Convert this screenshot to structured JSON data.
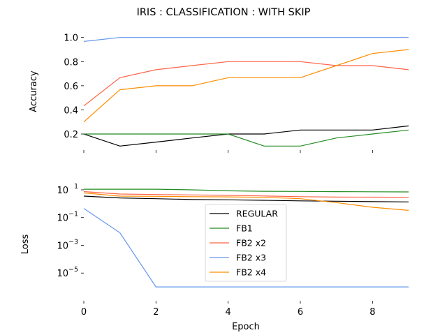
{
  "chart_data": {
    "title": "IRIS : CLASSIFICATION : WITH SKIP",
    "xlabel": "Epoch",
    "x": [
      0,
      1,
      2,
      3,
      4,
      5,
      6,
      7,
      8,
      9
    ],
    "x_ticks": [
      "0",
      "2",
      "4",
      "6",
      "8"
    ],
    "colors": {
      "REGULAR": "#000000",
      "FB1": "#228b22",
      "FB2 x2": "#ff6347",
      "FB2 x3": "#6495ed",
      "FB2 x4": "#ff8c00"
    },
    "subplots": [
      {
        "type": "line",
        "ylabel": "Accuracy",
        "yscale": "linear",
        "ylim": [
          0.067,
          1.033
        ],
        "y_ticks": [
          "0.2",
          "0.4",
          "0.6",
          "0.8",
          "1.0"
        ],
        "series": [
          {
            "name": "REGULAR",
            "values": [
              0.2,
              0.1,
              0.133,
              0.167,
              0.2,
              0.2,
              0.233,
              0.233,
              0.233,
              0.267
            ]
          },
          {
            "name": "FB1",
            "values": [
              0.2,
              0.2,
              0.2,
              0.2,
              0.2,
              0.1,
              0.1,
              0.167,
              0.2,
              0.233
            ]
          },
          {
            "name": "FB2 x2",
            "values": [
              0.433,
              0.667,
              0.733,
              0.767,
              0.8,
              0.8,
              0.8,
              0.767,
              0.767,
              0.733
            ]
          },
          {
            "name": "FB2 x3",
            "values": [
              0.967,
              1.0,
              1.0,
              1.0,
              1.0,
              1.0,
              1.0,
              1.0,
              1.0,
              1.0
            ]
          },
          {
            "name": "FB2 x4",
            "values": [
              0.3,
              0.567,
              0.6,
              0.6,
              0.667,
              0.667,
              0.667,
              0.767,
              0.867,
              0.9
            ]
          }
        ]
      },
      {
        "type": "line",
        "ylabel": "Loss",
        "yscale": "log",
        "ylim": [
          1e-07,
          40
        ],
        "y_ticks": [
          {
            "base": "10",
            "exp": "1"
          },
          {
            "base": "10",
            "exp": "−1"
          },
          {
            "base": "10",
            "exp": "−3"
          },
          {
            "base": "10",
            "exp": "−5"
          }
        ],
        "series": [
          {
            "name": "REGULAR",
            "values": [
              3.5,
              2.6,
              2.3,
              2.0,
              1.9,
              1.75,
              1.6,
              1.5,
              1.4,
              1.35
            ]
          },
          {
            "name": "FB1",
            "values": [
              11,
              11,
              11,
              10,
              8.5,
              7.8,
              7.6,
              7.4,
              7.2,
              7.0
            ]
          },
          {
            "name": "FB2 x2",
            "values": [
              7.5,
              5.0,
              4.6,
              4.3,
              4.0,
              3.6,
              3.2,
              3.0,
              2.95,
              2.9
            ]
          },
          {
            "name": "FB2 x3",
            "values": [
              0.45,
              0.008,
              1e-06,
              1e-06,
              1e-06,
              1e-06,
              1e-06,
              1e-06,
              1e-06,
              1e-06
            ]
          },
          {
            "name": "FB2 x4",
            "values": [
              6.0,
              3.5,
              3.4,
              3.2,
              3.1,
              2.9,
              2.3,
              1.2,
              0.55,
              0.33
            ]
          }
        ]
      }
    ],
    "legend": {
      "placement": "center of lower subplot",
      "entries": [
        "REGULAR",
        "FB1",
        "FB2 x2",
        "FB2 x3",
        "FB2 x4"
      ]
    }
  }
}
